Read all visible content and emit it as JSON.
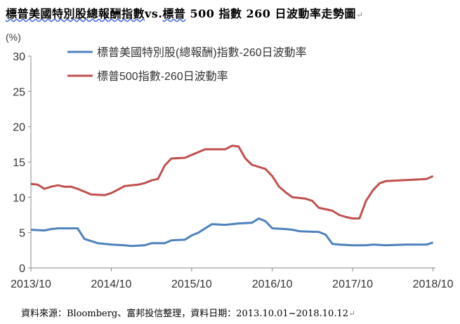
{
  "title": "標普美國特別股總報酬指數vs.標普500指數260日波動率走勢圖",
  "title_part_a": "標普美國特別股總報酬指數",
  "title_part_b": "vs.",
  "title_part_c": "標普",
  "title_part_d": "500 指數 260 日波動率走勢圖",
  "source": "資料來源：Bloomberg、富邦投信整理，資料日期：2013.10.01~2018.10.12",
  "chart_data": {
    "type": "line",
    "ylabel": "(%)",
    "ylim": [
      0,
      30
    ],
    "yticks": [
      0,
      5,
      10,
      15,
      20,
      25,
      30
    ],
    "xticks": [
      "2013/10",
      "2014/10",
      "2015/10",
      "2016/10",
      "2017/10",
      "2018/10"
    ],
    "x_range": [
      "2013-10-01",
      "2018-10-12"
    ],
    "legend_position": "top-center",
    "grid": false,
    "series": [
      {
        "name": "標普美國特別股(總報酬)指數-260日波動率",
        "color": "#4f81bd",
        "points": [
          [
            "2013-10",
            5.4
          ],
          [
            "2013-12",
            5.3
          ],
          [
            "2014-01",
            5.5
          ],
          [
            "2014-02",
            5.6
          ],
          [
            "2014-04",
            5.6
          ],
          [
            "2014-05",
            5.6
          ],
          [
            "2014-06",
            4.1
          ],
          [
            "2014-07",
            3.8
          ],
          [
            "2014-08",
            3.5
          ],
          [
            "2014-10",
            3.3
          ],
          [
            "2014-12",
            3.2
          ],
          [
            "2015-01",
            3.1
          ],
          [
            "2015-03",
            3.2
          ],
          [
            "2015-04",
            3.5
          ],
          [
            "2015-06",
            3.5
          ],
          [
            "2015-07",
            3.9
          ],
          [
            "2015-09",
            4.0
          ],
          [
            "2015-10",
            4.6
          ],
          [
            "2015-11",
            5.0
          ],
          [
            "2016-01",
            6.2
          ],
          [
            "2016-03",
            6.1
          ],
          [
            "2016-05",
            6.3
          ],
          [
            "2016-07",
            6.4
          ],
          [
            "2016-08",
            7.0
          ],
          [
            "2016-09",
            6.6
          ],
          [
            "2016-10",
            5.6
          ],
          [
            "2016-12",
            5.5
          ],
          [
            "2017-01",
            5.4
          ],
          [
            "2017-02",
            5.2
          ],
          [
            "2017-05",
            5.1
          ],
          [
            "2017-06",
            4.7
          ],
          [
            "2017-07",
            3.4
          ],
          [
            "2017-08",
            3.3
          ],
          [
            "2017-10",
            3.2
          ],
          [
            "2017-12",
            3.2
          ],
          [
            "2018-01",
            3.3
          ],
          [
            "2018-03",
            3.2
          ],
          [
            "2018-06",
            3.3
          ],
          [
            "2018-09",
            3.3
          ],
          [
            "2018-10",
            3.6
          ]
        ]
      },
      {
        "name": "標普500指數-260日波動率",
        "color": "#c0504d",
        "points": [
          [
            "2013-10",
            11.9
          ],
          [
            "2013-11",
            11.8
          ],
          [
            "2013-12",
            11.2
          ],
          [
            "2014-01",
            11.5
          ],
          [
            "2014-02",
            11.7
          ],
          [
            "2014-03",
            11.5
          ],
          [
            "2014-04",
            11.5
          ],
          [
            "2014-05",
            11.2
          ],
          [
            "2014-06",
            10.8
          ],
          [
            "2014-07",
            10.4
          ],
          [
            "2014-09",
            10.3
          ],
          [
            "2014-10",
            10.6
          ],
          [
            "2014-11",
            11.1
          ],
          [
            "2014-12",
            11.6
          ],
          [
            "2015-01",
            11.7
          ],
          [
            "2015-02",
            11.8
          ],
          [
            "2015-03",
            12.0
          ],
          [
            "2015-04",
            12.4
          ],
          [
            "2015-05",
            12.6
          ],
          [
            "2015-06",
            14.5
          ],
          [
            "2015-07",
            15.5
          ],
          [
            "2015-09",
            15.6
          ],
          [
            "2015-10",
            16.0
          ],
          [
            "2015-11",
            16.4
          ],
          [
            "2015-12",
            16.8
          ],
          [
            "2016-01",
            16.8
          ],
          [
            "2016-03",
            16.8
          ],
          [
            "2016-04",
            17.3
          ],
          [
            "2016-05",
            17.2
          ],
          [
            "2016-06",
            15.5
          ],
          [
            "2016-07",
            14.6
          ],
          [
            "2016-08",
            14.3
          ],
          [
            "2016-09",
            14.0
          ],
          [
            "2016-10",
            13.0
          ],
          [
            "2016-11",
            11.5
          ],
          [
            "2016-12",
            10.7
          ],
          [
            "2017-01",
            10.0
          ],
          [
            "2017-02",
            9.9
          ],
          [
            "2017-03",
            9.8
          ],
          [
            "2017-04",
            9.5
          ],
          [
            "2017-05",
            8.5
          ],
          [
            "2017-06",
            8.3
          ],
          [
            "2017-07",
            8.1
          ],
          [
            "2017-08",
            7.5
          ],
          [
            "2017-09",
            7.2
          ],
          [
            "2017-10",
            7.0
          ],
          [
            "2017-11",
            7.0
          ],
          [
            "2017-12",
            9.5
          ],
          [
            "2018-01",
            11.0
          ],
          [
            "2018-02",
            12.0
          ],
          [
            "2018-03",
            12.3
          ],
          [
            "2018-05",
            12.4
          ],
          [
            "2018-07",
            12.5
          ],
          [
            "2018-09",
            12.6
          ],
          [
            "2018-10",
            13.0
          ]
        ]
      }
    ]
  }
}
